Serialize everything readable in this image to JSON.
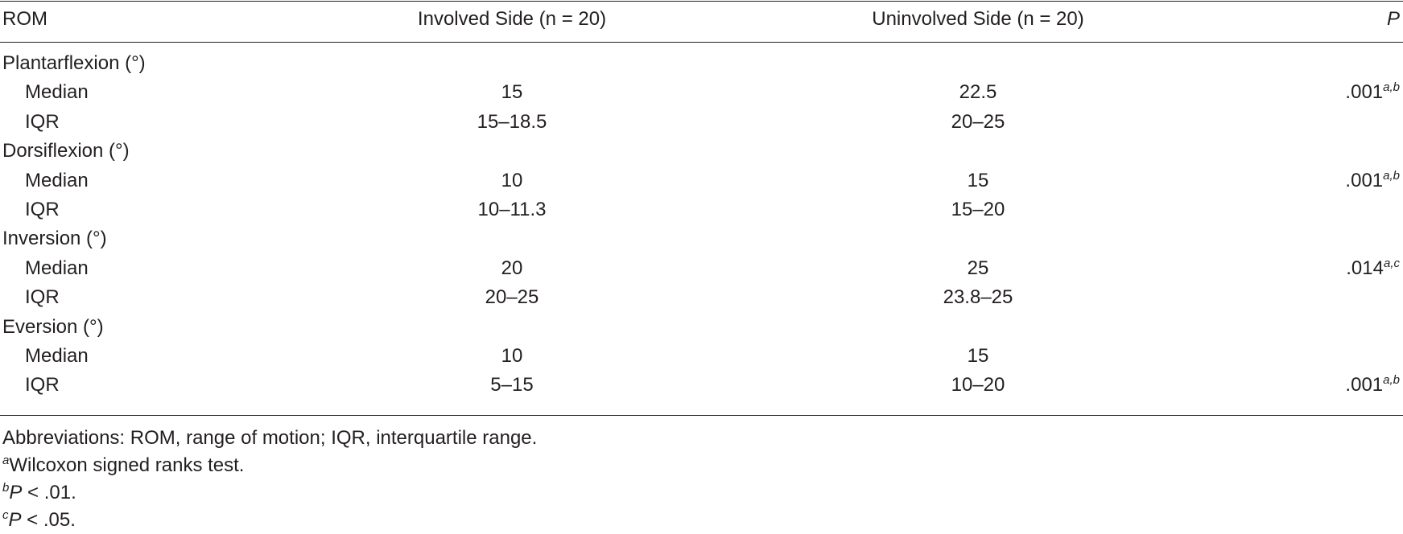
{
  "table": {
    "header": [
      "ROM",
      "Involved Side (n = 20)",
      "Uninvolved Side (n = 20)",
      "P"
    ],
    "groups": [
      {
        "label": "Plantarflexion (°)",
        "rows": [
          {
            "label": "Median",
            "involved": "15",
            "uninvolved": "22.5",
            "p": ".001",
            "p_note": "a,b"
          },
          {
            "label": "IQR",
            "involved": "15–18.5",
            "uninvolved": "20–25"
          }
        ]
      },
      {
        "label": "Dorsiflexion (°)",
        "rows": [
          {
            "label": "Median",
            "involved": "10",
            "uninvolved": "15",
            "p": ".001",
            "p_note": "a,b"
          },
          {
            "label": "IQR",
            "involved": "10–11.3",
            "uninvolved": "15–20"
          }
        ]
      },
      {
        "label": "Inversion (°)",
        "rows": [
          {
            "label": "Median",
            "involved": "20",
            "uninvolved": "25",
            "p": ".014",
            "p_note": "a,c"
          },
          {
            "label": "IQR",
            "involved": "20–25",
            "uninvolved": "23.8–25"
          }
        ]
      },
      {
        "label": "Eversion (°)",
        "rows": [
          {
            "label": "Median",
            "involved": "10",
            "uninvolved": "15"
          },
          {
            "label": "IQR",
            "involved": "5–15",
            "uninvolved": "10–20",
            "p": ".001",
            "p_note": "a,b"
          }
        ]
      }
    ]
  },
  "footnotes": [
    {
      "text": "Abbreviations: ROM, range of motion; IQR, interquartile range."
    },
    {
      "sup": "a",
      "text": "Wilcoxon signed ranks test."
    },
    {
      "sup": "b",
      "italic": "P",
      "text": " < .01."
    },
    {
      "sup": "c",
      "italic": "P",
      "text": " < .05."
    }
  ]
}
